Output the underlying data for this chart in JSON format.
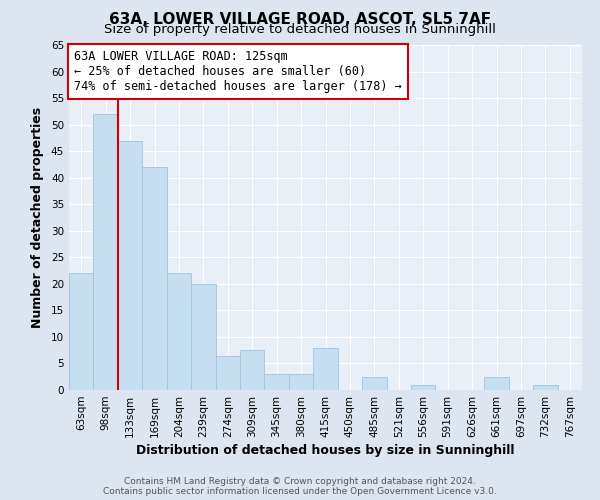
{
  "title1": "63A, LOWER VILLAGE ROAD, ASCOT, SL5 7AF",
  "title2": "Size of property relative to detached houses in Sunninghill",
  "xlabel": "Distribution of detached houses by size in Sunninghill",
  "ylabel": "Number of detached properties",
  "footer1": "Contains HM Land Registry data © Crown copyright and database right 2024.",
  "footer2": "Contains public sector information licensed under the Open Government Licence v3.0.",
  "bin_labels": [
    "63sqm",
    "98sqm",
    "133sqm",
    "169sqm",
    "204sqm",
    "239sqm",
    "274sqm",
    "309sqm",
    "345sqm",
    "380sqm",
    "415sqm",
    "450sqm",
    "485sqm",
    "521sqm",
    "556sqm",
    "591sqm",
    "626sqm",
    "661sqm",
    "697sqm",
    "732sqm",
    "767sqm"
  ],
  "bar_heights": [
    22,
    52,
    47,
    42,
    22,
    20,
    6.5,
    7.5,
    3,
    3,
    8,
    0,
    2.5,
    0,
    1,
    0,
    0,
    2.5,
    0,
    1,
    0
  ],
  "bar_color": "#c5dff0",
  "bar_edge_color": "#a0c4de",
  "vline_color": "#cc0000",
  "annotation_line1": "63A LOWER VILLAGE ROAD: 125sqm",
  "annotation_line2": "← 25% of detached houses are smaller (60)",
  "annotation_line3": "74% of semi-detached houses are larger (178) →",
  "annotation_box_edgecolor": "#cc0000",
  "ylim": [
    0,
    65
  ],
  "yticks": [
    0,
    5,
    10,
    15,
    20,
    25,
    30,
    35,
    40,
    45,
    50,
    55,
    60,
    65
  ],
  "bg_color": "#dde6f0",
  "plot_bg_color": "#e8eff7",
  "grid_color": "#ffffff",
  "title_fontsize": 11,
  "subtitle_fontsize": 9.5,
  "label_fontsize": 9,
  "tick_fontsize": 7.5,
  "annotation_fontsize": 8.5,
  "footer_fontsize": 6.5
}
